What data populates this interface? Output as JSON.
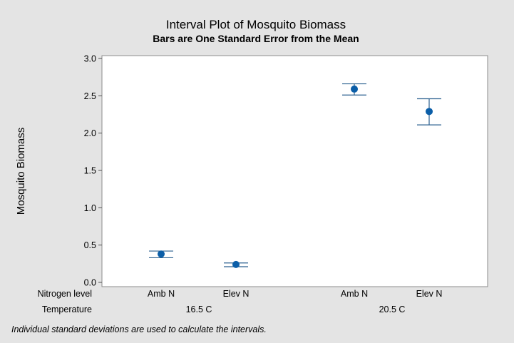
{
  "chart_data": {
    "type": "interval",
    "title": "Interval Plot of Mosquito Biomass",
    "subtitle": "Bars are One Standard Error from the Mean",
    "ylabel": "Mosquito Biomass",
    "ylim": [
      0.0,
      3.0
    ],
    "yticks": [
      "0.0",
      "0.5",
      "1.0",
      "1.5",
      "2.0",
      "2.5",
      "3.0"
    ],
    "x_rows": [
      {
        "label": "Nitrogen level",
        "values": [
          "Amb N",
          "Elev N",
          "Amb N",
          "Elev N"
        ]
      },
      {
        "label": "Temperature",
        "values": [
          "16.5 C",
          "20.5 C"
        ]
      }
    ],
    "groups": [
      {
        "temperature": "16.5 C",
        "nitrogen": "Amb N",
        "mean": 0.38,
        "lower": 0.33,
        "upper": 0.42
      },
      {
        "temperature": "16.5 C",
        "nitrogen": "Elev N",
        "mean": 0.24,
        "lower": 0.21,
        "upper": 0.26
      },
      {
        "temperature": "20.5 C",
        "nitrogen": "Amb N",
        "mean": 2.59,
        "lower": 2.51,
        "upper": 2.66
      },
      {
        "temperature": "20.5 C",
        "nitrogen": "Elev N",
        "mean": 2.29,
        "lower": 2.11,
        "upper": 2.46
      }
    ],
    "footnote": "Individual standard deviations are used to calculate the intervals.",
    "colors": {
      "point": "#0b5ea8",
      "interval": "#2a5f8f",
      "plot_bg": "#ffffff",
      "page_bg": "#e4e4e4"
    }
  }
}
